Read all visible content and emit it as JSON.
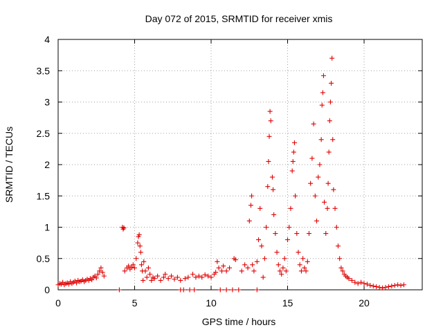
{
  "chart_data": {
    "type": "scatter",
    "title": "Day 072 of 2015, SRMTID for receiver xmis",
    "xlabel": "GPS time / hours",
    "ylabel": "SRMTID / TECUs",
    "xlim": [
      0,
      23.8
    ],
    "ylim": [
      0,
      4
    ],
    "xticks": [
      0,
      5,
      10,
      15,
      20
    ],
    "xtick_labels": [
      "0",
      "5",
      "10",
      "15",
      "20"
    ],
    "yticks": [
      0,
      0.5,
      1,
      1.5,
      2,
      2.5,
      3,
      3.5,
      4
    ],
    "ytick_labels": [
      "0",
      "0.5",
      "1",
      "1.5",
      "2",
      "2.5",
      "3",
      "3.5",
      "4"
    ],
    "grid": true,
    "marker": "+",
    "series": [
      {
        "name": "SRMTID",
        "color": "#e00000",
        "points": [
          [
            0.0,
            0.08
          ],
          [
            0.1,
            0.1
          ],
          [
            0.2,
            0.09
          ],
          [
            0.3,
            0.12
          ],
          [
            0.4,
            0.08
          ],
          [
            0.5,
            0.1
          ],
          [
            0.6,
            0.11
          ],
          [
            0.7,
            0.09
          ],
          [
            0.8,
            0.13
          ],
          [
            0.9,
            0.1
          ],
          [
            1.0,
            0.12
          ],
          [
            1.1,
            0.14
          ],
          [
            1.2,
            0.11
          ],
          [
            1.3,
            0.15
          ],
          [
            1.4,
            0.13
          ],
          [
            1.5,
            0.14
          ],
          [
            1.6,
            0.16
          ],
          [
            1.7,
            0.13
          ],
          [
            1.8,
            0.15
          ],
          [
            1.9,
            0.17
          ],
          [
            2.0,
            0.15
          ],
          [
            2.1,
            0.18
          ],
          [
            2.2,
            0.16
          ],
          [
            2.3,
            0.2
          ],
          [
            2.4,
            0.22
          ],
          [
            2.5,
            0.19
          ],
          [
            2.6,
            0.25
          ],
          [
            2.7,
            0.3
          ],
          [
            2.8,
            0.35
          ],
          [
            2.9,
            0.28
          ],
          [
            3.0,
            0.22
          ],
          [
            4.0,
            0.0
          ],
          [
            4.2,
            1.0
          ],
          [
            4.25,
            0.97
          ],
          [
            4.3,
            0.99
          ],
          [
            4.35,
            0.3
          ],
          [
            4.5,
            0.35
          ],
          [
            4.6,
            0.38
          ],
          [
            4.7,
            0.33
          ],
          [
            4.8,
            0.36
          ],
          [
            4.9,
            0.4
          ],
          [
            5.0,
            0.35
          ],
          [
            5.1,
            0.5
          ],
          [
            5.2,
            0.75
          ],
          [
            5.25,
            0.85
          ],
          [
            5.3,
            0.88
          ],
          [
            5.35,
            0.7
          ],
          [
            5.4,
            0.6
          ],
          [
            5.45,
            0.4
          ],
          [
            5.5,
            0.3
          ],
          [
            5.55,
            0.15
          ],
          [
            5.6,
            0.45
          ],
          [
            5.7,
            0.3
          ],
          [
            5.8,
            0.2
          ],
          [
            5.9,
            0.35
          ],
          [
            6.0,
            0.25
          ],
          [
            6.1,
            0.15
          ],
          [
            6.2,
            0.2
          ],
          [
            6.3,
            0.18
          ],
          [
            6.5,
            0.22
          ],
          [
            6.7,
            0.15
          ],
          [
            6.9,
            0.2
          ],
          [
            7.0,
            0.25
          ],
          [
            7.2,
            0.18
          ],
          [
            7.4,
            0.22
          ],
          [
            7.6,
            0.17
          ],
          [
            7.8,
            0.2
          ],
          [
            8.0,
            0.15
          ],
          [
            8.0,
            0.0
          ],
          [
            8.2,
            0.0
          ],
          [
            8.3,
            0.18
          ],
          [
            8.5,
            0.2
          ],
          [
            8.6,
            0.0
          ],
          [
            8.8,
            0.25
          ],
          [
            8.9,
            0.0
          ],
          [
            9.0,
            0.2
          ],
          [
            9.2,
            0.22
          ],
          [
            9.4,
            0.2
          ],
          [
            9.6,
            0.24
          ],
          [
            9.8,
            0.22
          ],
          [
            10.0,
            0.2
          ],
          [
            10.2,
            0.25
          ],
          [
            10.3,
            0.28
          ],
          [
            10.4,
            0.45
          ],
          [
            10.5,
            0.35
          ],
          [
            10.6,
            0.0
          ],
          [
            10.7,
            0.3
          ],
          [
            10.8,
            0.38
          ],
          [
            11.0,
            0.3
          ],
          [
            11.0,
            0.0
          ],
          [
            11.2,
            0.35
          ],
          [
            11.4,
            0.0
          ],
          [
            11.5,
            0.5
          ],
          [
            11.6,
            0.48
          ],
          [
            11.8,
            0.0
          ],
          [
            12.0,
            0.3
          ],
          [
            12.2,
            0.4
          ],
          [
            12.4,
            0.35
          ],
          [
            12.5,
            1.1
          ],
          [
            12.6,
            1.35
          ],
          [
            12.65,
            1.5
          ],
          [
            12.7,
            0.4
          ],
          [
            12.8,
            0.3
          ],
          [
            13.0,
            0.45
          ],
          [
            13.0,
            0.0
          ],
          [
            13.1,
            0.8
          ],
          [
            13.2,
            1.3
          ],
          [
            13.3,
            0.7
          ],
          [
            13.4,
            0.2
          ],
          [
            13.5,
            0.5
          ],
          [
            13.6,
            1.0
          ],
          [
            13.7,
            1.65
          ],
          [
            13.75,
            2.05
          ],
          [
            13.8,
            2.45
          ],
          [
            13.85,
            2.85
          ],
          [
            13.9,
            2.7
          ],
          [
            14.0,
            1.8
          ],
          [
            14.05,
            1.6
          ],
          [
            14.1,
            1.2
          ],
          [
            14.2,
            0.9
          ],
          [
            14.3,
            0.6
          ],
          [
            14.4,
            0.4
          ],
          [
            14.5,
            0.3
          ],
          [
            14.6,
            0.25
          ],
          [
            14.7,
            0.35
          ],
          [
            14.8,
            0.5
          ],
          [
            14.9,
            0.3
          ],
          [
            15.0,
            0.8
          ],
          [
            15.1,
            1.0
          ],
          [
            15.2,
            1.3
          ],
          [
            15.3,
            1.9
          ],
          [
            15.35,
            2.05
          ],
          [
            15.4,
            2.2
          ],
          [
            15.45,
            2.35
          ],
          [
            15.5,
            1.5
          ],
          [
            15.6,
            0.9
          ],
          [
            15.7,
            0.6
          ],
          [
            15.8,
            0.4
          ],
          [
            15.9,
            0.3
          ],
          [
            16.0,
            0.5
          ],
          [
            16.1,
            0.35
          ],
          [
            16.2,
            0.3
          ],
          [
            16.3,
            0.45
          ],
          [
            16.4,
            0.9
          ],
          [
            16.5,
            1.7
          ],
          [
            16.6,
            2.1
          ],
          [
            16.7,
            2.65
          ],
          [
            16.8,
            1.5
          ],
          [
            16.9,
            1.1
          ],
          [
            17.0,
            1.8
          ],
          [
            17.1,
            2.0
          ],
          [
            17.2,
            2.4
          ],
          [
            17.25,
            2.95
          ],
          [
            17.3,
            3.15
          ],
          [
            17.35,
            3.42
          ],
          [
            17.4,
            1.4
          ],
          [
            17.5,
            0.9
          ],
          [
            17.6,
            1.3
          ],
          [
            17.65,
            1.7
          ],
          [
            17.7,
            2.2
          ],
          [
            17.75,
            2.7
          ],
          [
            17.8,
            3.0
          ],
          [
            17.85,
            3.3
          ],
          [
            17.9,
            3.7
          ],
          [
            17.95,
            2.4
          ],
          [
            18.0,
            1.6
          ],
          [
            18.1,
            1.3
          ],
          [
            18.2,
            1.0
          ],
          [
            18.3,
            0.7
          ],
          [
            18.4,
            0.5
          ],
          [
            18.5,
            0.35
          ],
          [
            18.6,
            0.3
          ],
          [
            18.7,
            0.25
          ],
          [
            18.8,
            0.22
          ],
          [
            18.9,
            0.2
          ],
          [
            19.0,
            0.18
          ],
          [
            19.2,
            0.15
          ],
          [
            19.4,
            0.12
          ],
          [
            19.6,
            0.1
          ],
          [
            19.8,
            0.12
          ],
          [
            20.0,
            0.1
          ],
          [
            20.2,
            0.09
          ],
          [
            20.4,
            0.07
          ],
          [
            20.6,
            0.06
          ],
          [
            20.8,
            0.05
          ],
          [
            21.0,
            0.04
          ],
          [
            21.2,
            0.03
          ],
          [
            21.4,
            0.04
          ],
          [
            21.6,
            0.05
          ],
          [
            21.8,
            0.06
          ],
          [
            22.0,
            0.07
          ],
          [
            22.2,
            0.08
          ],
          [
            22.4,
            0.07
          ],
          [
            22.6,
            0.08
          ]
        ]
      }
    ]
  }
}
